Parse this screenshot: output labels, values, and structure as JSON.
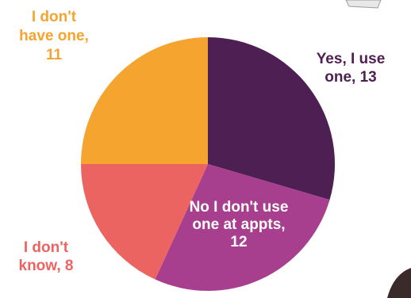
{
  "chart_data": {
    "type": "pie",
    "title": "",
    "slices": [
      {
        "label": "Yes, I use one, 13",
        "label_lines": [
          "Yes, I use",
          "one, 13"
        ],
        "category": "Yes, I use one",
        "value": 13,
        "color": "#4e1f52",
        "label_color": "#4e1f52"
      },
      {
        "label": "No I don't use one at appts, 12",
        "label_lines": [
          "No I don't use",
          "one at appts,",
          "12"
        ],
        "category": "No I don't use one at appts",
        "value": 12,
        "color": "#a83f8e",
        "label_color": "#ffffff"
      },
      {
        "label": "I don't know, 8",
        "label_lines": [
          "I don't",
          "know, 8"
        ],
        "category": "I don't know",
        "value": 8,
        "color": "#ec6461",
        "label_color": "#ec6461"
      },
      {
        "label": "I don't have one, 11",
        "label_lines": [
          "I don't",
          "have one,",
          "11"
        ],
        "category": "I don't have one",
        "value": 11,
        "color": "#f4a42f",
        "label_color": "#f4a42f"
      }
    ],
    "start_angle": "12 o'clock",
    "direction": "clockwise",
    "legend": "none (labels placed beside slices)"
  }
}
